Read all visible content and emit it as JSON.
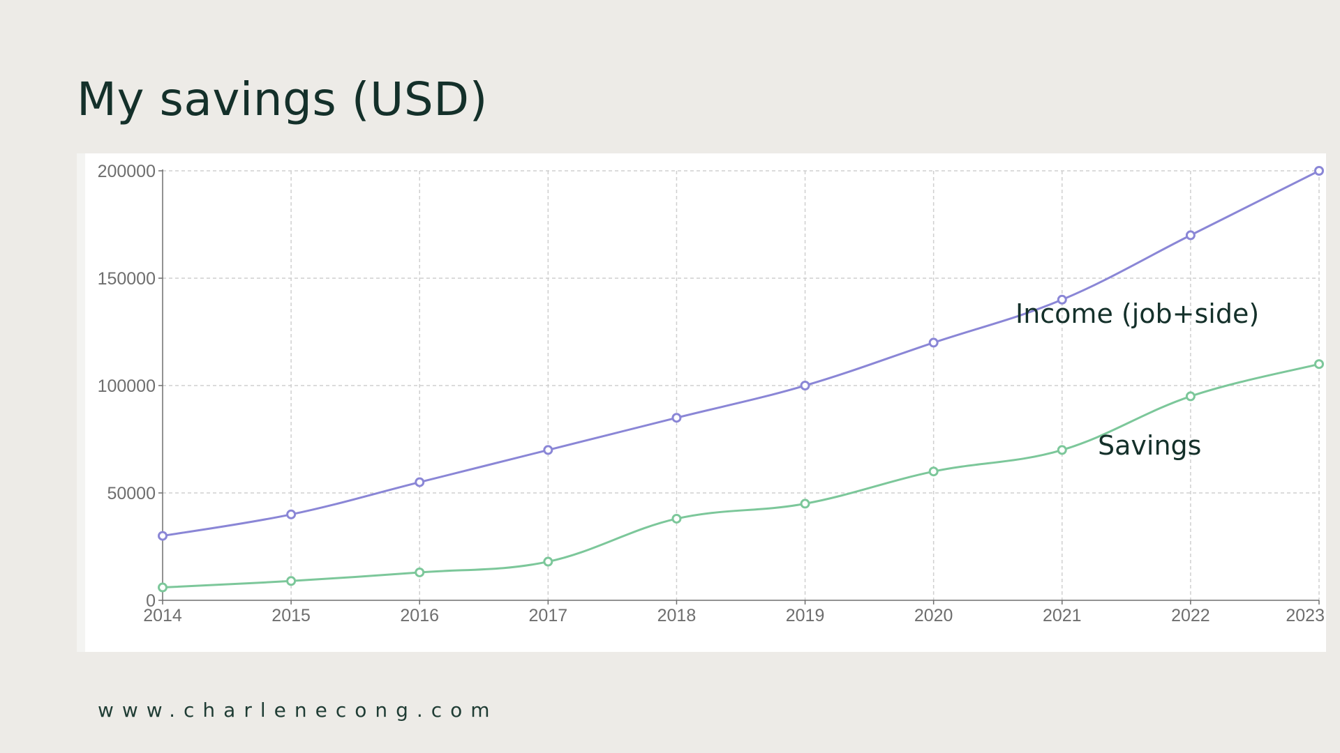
{
  "page": {
    "title": "My savings (USD)",
    "footer": "www.charlenecong.com"
  },
  "chart_data": {
    "type": "line",
    "title": "My savings (USD)",
    "x": [
      2014,
      2015,
      2016,
      2017,
      2018,
      2019,
      2020,
      2021,
      2022,
      2023
    ],
    "series": [
      {
        "name": "Income (job+side)",
        "color": "#8a86d6",
        "values": [
          30000,
          40000,
          55000,
          70000,
          85000,
          100000,
          120000,
          140000,
          170000,
          200000
        ]
      },
      {
        "name": "Savings",
        "color": "#7cc79a",
        "values": [
          6000,
          9000,
          13000,
          18000,
          38000,
          45000,
          60000,
          70000,
          95000,
          110000
        ]
      }
    ],
    "xlim": [
      2014,
      2023
    ],
    "ylim": [
      0,
      200000
    ],
    "yticks": [
      0,
      50000,
      100000,
      150000,
      200000
    ],
    "xlabel": "",
    "ylabel": "",
    "grid": true,
    "legend": "none (series labels placed inline near lines)"
  }
}
